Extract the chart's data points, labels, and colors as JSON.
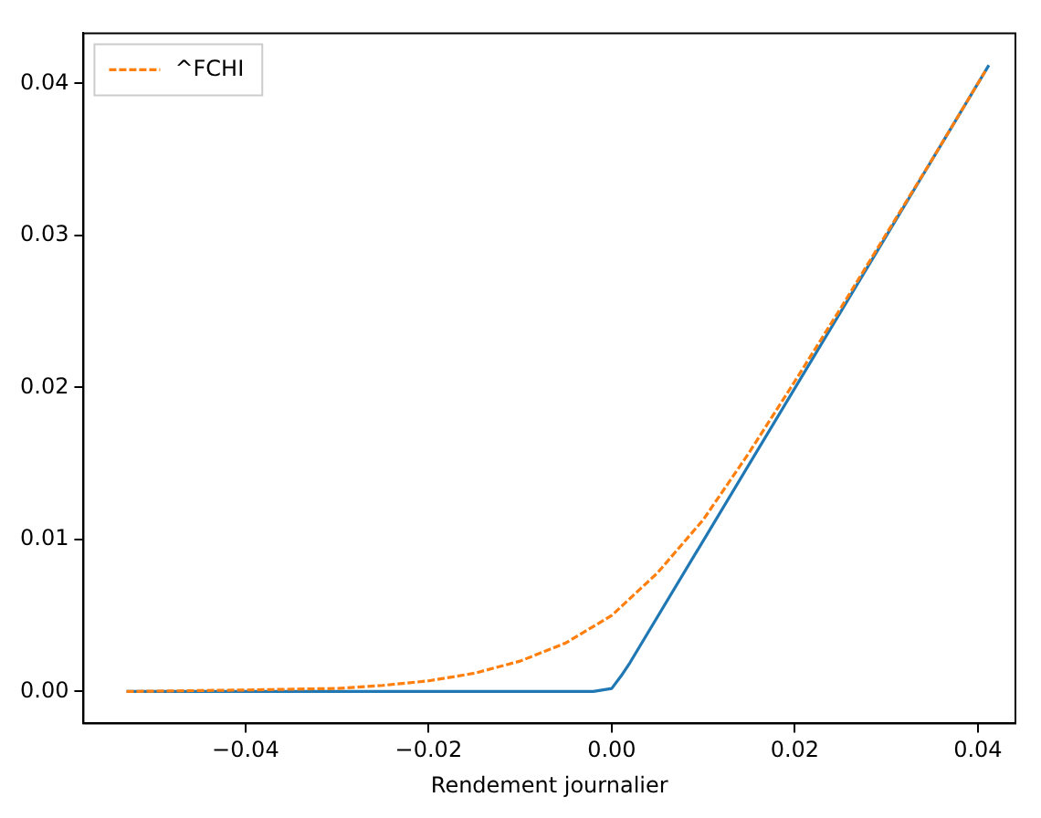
{
  "chart_data": {
    "type": "line",
    "xlabel": "Rendement journalier",
    "xlim": [
      -0.0577,
      0.0441
    ],
    "ylim": [
      -0.0021,
      0.0433
    ],
    "xticks": [
      {
        "value": -0.04,
        "label": "−0.04"
      },
      {
        "value": -0.02,
        "label": "−0.02"
      },
      {
        "value": 0,
        "label": "0.00"
      },
      {
        "value": 0.02,
        "label": "0.02"
      },
      {
        "value": 0.04,
        "label": "0.04"
      }
    ],
    "yticks": [
      {
        "value": 0,
        "label": "0.00"
      },
      {
        "value": 0.01,
        "label": "0.01"
      },
      {
        "value": 0.02,
        "label": "0.02"
      },
      {
        "value": 0.03,
        "label": "0.03"
      },
      {
        "value": 0.04,
        "label": "0.04"
      }
    ],
    "grid": false,
    "legend": "top left",
    "marker": "none",
    "series": [
      {
        "color": "#1f77b4",
        "line_style": "solid",
        "x": [
          -0.053,
          -0.002,
          0,
          0.001,
          0.002,
          0.0412
        ],
        "values": [
          0,
          0,
          0.0002,
          0.001,
          0.0019,
          0.0412
        ]
      },
      {
        "name": "^FCHI",
        "color": "#ff7f0e",
        "line_style": "dashed",
        "x": [
          -0.053,
          -0.04,
          -0.03,
          -0.025,
          -0.02,
          -0.015,
          -0.01,
          -0.005,
          0,
          0.005,
          0.01,
          0.015,
          0.02,
          0.025,
          0.03,
          0.035,
          0.0408
        ],
        "values": [
          0,
          0.0001,
          0.0002,
          0.0004,
          0.0007,
          0.0012,
          0.002,
          0.0032,
          0.005,
          0.0078,
          0.0113,
          0.0157,
          0.0204,
          0.0252,
          0.0301,
          0.035,
          0.0408
        ]
      }
    ]
  }
}
